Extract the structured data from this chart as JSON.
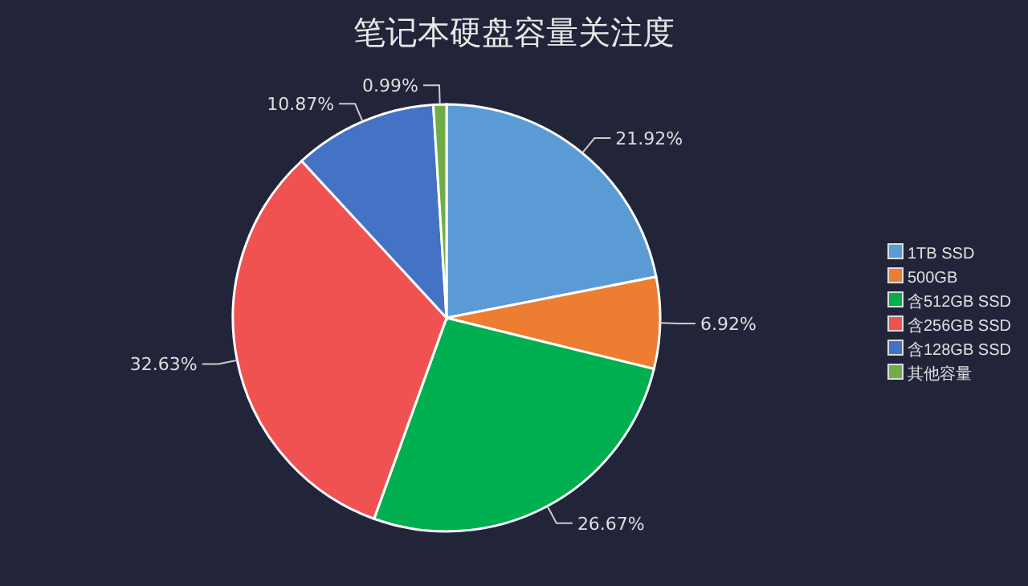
{
  "chart_data": {
    "type": "pie",
    "title": "笔记本硬盘容量关注度",
    "categories": [
      "1TB SSD",
      "500GB",
      "含512GB SSD",
      "含256GB SSD",
      "含128GB SSD",
      "其他容量"
    ],
    "values": [
      21.92,
      6.92,
      26.67,
      32.63,
      10.87,
      0.99
    ],
    "colors": [
      "#5b9bd5",
      "#ed7d31",
      "#00b050",
      "#f05252",
      "#4472c4",
      "#70ad47"
    ],
    "value_labels": [
      "21.92%",
      "6.92%",
      "26.67%",
      "32.63%",
      "10.87%",
      "0.99%"
    ],
    "legend": "right"
  }
}
